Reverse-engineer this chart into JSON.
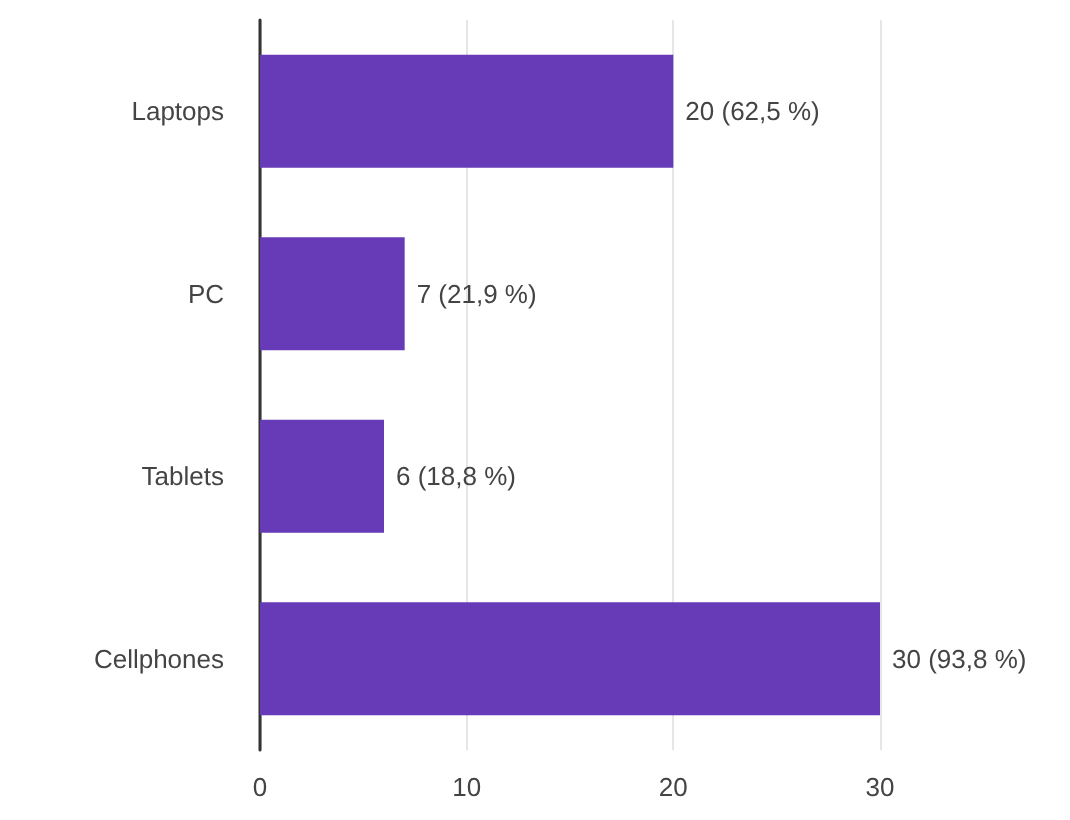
{
  "chart_data": {
    "type": "bar",
    "orientation": "horizontal",
    "categories": [
      "Laptops",
      "PC",
      "Tablets",
      "Cellphones"
    ],
    "values": [
      20,
      7,
      6,
      30
    ],
    "value_labels": [
      "20 (62,5 %)",
      "7 (21,9 %)",
      "6 (18,8 %)",
      "30 (93,8 %)"
    ],
    "color": "#673ab7",
    "xlim": [
      0,
      30
    ],
    "xticks": [
      0,
      10,
      20,
      30
    ],
    "grid": "x"
  }
}
